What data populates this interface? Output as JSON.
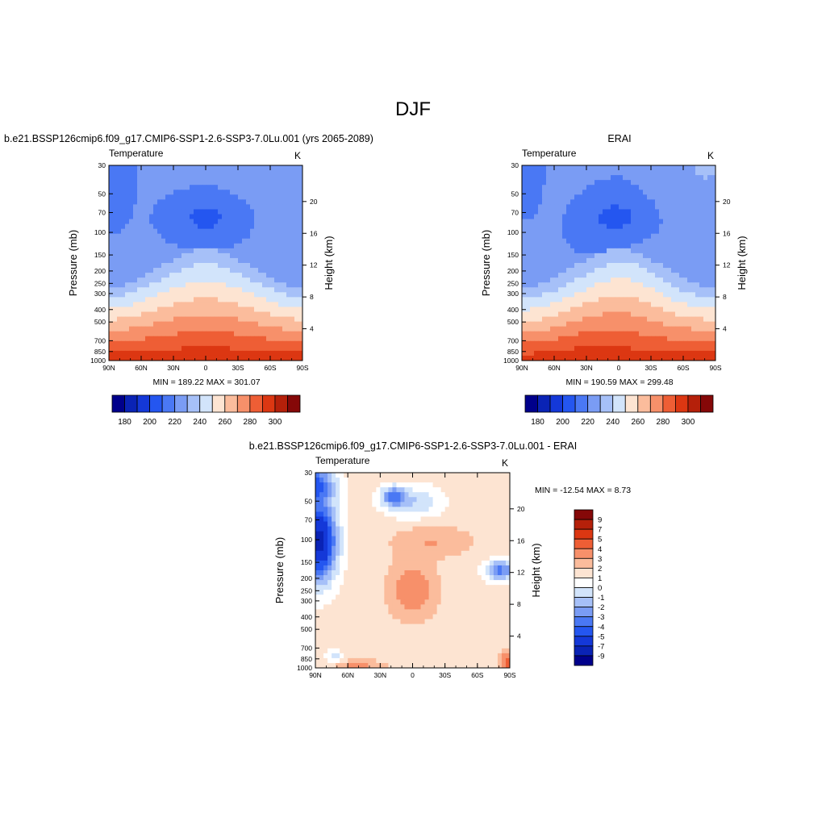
{
  "chart_data": {
    "type": "heatmap",
    "title": "DJF",
    "panels": [
      {
        "id": "model",
        "header": "b.e21.BSSP126cmip6.f09_g17.CMIP6-SSP1-2.6-SSP3-7.0Lu.001 (yrs 2065-2089)",
        "left_label": "Temperature",
        "units": "K",
        "ylabel": "Pressure (mb)",
        "y2label": "Height (km)",
        "x_ticks": [
          "90N",
          "60N",
          "30N",
          "0",
          "30S",
          "60S",
          "90S"
        ],
        "p_ticks": [
          "30",
          "50",
          "70",
          "100",
          "150",
          "200",
          "250",
          "300",
          "400",
          "500",
          "700",
          "850",
          "1000"
        ],
        "h_ticks": [
          "20",
          "16",
          "12",
          "8",
          "4"
        ],
        "stats": "MIN = 189.22  MAX = 301.07",
        "colorbar_labels": [
          "180",
          "190",
          "200",
          "210",
          "220",
          "230",
          "240",
          "250",
          "260",
          "270",
          "280",
          "290",
          "300"
        ]
      },
      {
        "id": "obs",
        "header": "ERAI",
        "left_label": "Temperature",
        "units": "K",
        "ylabel": "Pressure (mb)",
        "y2label": "Height (km)",
        "x_ticks": [
          "90N",
          "60N",
          "30N",
          "0",
          "30S",
          "60S",
          "90S"
        ],
        "p_ticks": [
          "30",
          "50",
          "70",
          "100",
          "150",
          "200",
          "250",
          "300",
          "400",
          "500",
          "700",
          "850",
          "1000"
        ],
        "h_ticks": [
          "20",
          "16",
          "12",
          "8",
          "4"
        ],
        "stats": "MIN = 190.59  MAX = 299.48",
        "colorbar_labels": [
          "180",
          "190",
          "200",
          "210",
          "220",
          "230",
          "240",
          "250",
          "260",
          "270",
          "280",
          "290",
          "300"
        ]
      },
      {
        "id": "diff",
        "header": "b.e21.BSSP126cmip6.f09_g17.CMIP6-SSP1-2.6-SSP3-7.0Lu.001 - ERAI",
        "left_label": "Temperature",
        "units": "K",
        "ylabel": "Pressure (mb)",
        "y2label": "Height (km)",
        "x_ticks": [
          "90N",
          "60N",
          "30N",
          "0",
          "30S",
          "60S",
          "90S"
        ],
        "p_ticks": [
          "30",
          "50",
          "70",
          "100",
          "150",
          "200",
          "250",
          "300",
          "400",
          "500",
          "700",
          "850",
          "1000"
        ],
        "h_ticks": [
          "20",
          "16",
          "12",
          "8",
          "4"
        ],
        "stats": "MIN = -12.54  MAX =   8.73",
        "colorbar_labels": [
          "9",
          "7",
          "5",
          "4",
          "3",
          "2",
          "1",
          "0",
          "-1",
          "-2",
          "-3",
          "-4",
          "-5",
          "-7",
          "-9"
        ]
      }
    ],
    "abs_palette": [
      "#00008b",
      "#0a23b5",
      "#1438d8",
      "#2456f0",
      "#4a78f4",
      "#7a9cf4",
      "#a6c0f8",
      "#d2e4fb",
      "#fde4d2",
      "#fbbc9c",
      "#f7906a",
      "#ee5e35",
      "#dc3712",
      "#b5200a",
      "#850808"
    ],
    "diff_palette": [
      "#850808",
      "#b5200a",
      "#dc3712",
      "#ee5e35",
      "#f7906a",
      "#fbbc9c",
      "#fde4d2",
      "#ffffff",
      "#d2e4fb",
      "#a6c0f8",
      "#7a9cf4",
      "#4a78f4",
      "#2456f0",
      "#1438d8",
      "#0a23b5",
      "#00008b"
    ]
  }
}
